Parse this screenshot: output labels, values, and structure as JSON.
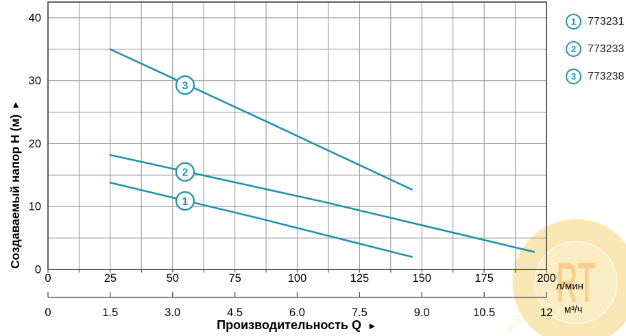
{
  "page": {
    "background": "#ffffff"
  },
  "legend": {
    "items": [
      {
        "marker": "1",
        "label": "773231"
      },
      {
        "marker": "2",
        "label": "773233"
      },
      {
        "marker": "3",
        "label": "773238"
      }
    ]
  },
  "watermark": {
    "arc_top": "WWW.RT.CO.UA",
    "logo": "RT",
    "arc_bottom": "Интернет магазин",
    "colors": {
      "disc": "#f3cf6e",
      "inner": "#f6db88",
      "ring_line": "#fdf2cd",
      "arc_text": "#fbeec2",
      "logo_text": "#efa11c"
    }
  },
  "chart_data": {
    "type": "line",
    "title": "",
    "grid": true,
    "legend_position": "top-right-outside",
    "y_axis": {
      "label": "Создаваемый напор H (м)",
      "arrow": "▲",
      "tick_labels": [
        "0",
        "10",
        "20",
        "30",
        "40"
      ],
      "tick_values": [
        0,
        10,
        20,
        30,
        40
      ],
      "grid_step": 5,
      "range": [
        0,
        42.5
      ]
    },
    "x_axis_primary": {
      "unit": "л/мин",
      "tick_labels": [
        "0",
        "25",
        "50",
        "75",
        "100",
        "125",
        "150",
        "175",
        "200"
      ],
      "tick_values": [
        0,
        25,
        50,
        75,
        100,
        125,
        150,
        175,
        200
      ],
      "grid_step": 12.5,
      "range": [
        0,
        200
      ]
    },
    "x_axis_secondary": {
      "unit": "м³/ч",
      "tick_labels": [
        "0",
        "1.5",
        "3.0",
        "4.5",
        "6.0",
        "7.5",
        "9.0",
        "10.5",
        "12"
      ],
      "tick_values": [
        0,
        1.5,
        3,
        4.5,
        6,
        7.5,
        9,
        10.5,
        12
      ]
    },
    "x_title": {
      "label": "Производительность Q",
      "arrow": "►"
    },
    "series": [
      {
        "marker": "1",
        "model": "773231",
        "points_lmin_m": [
          [
            25,
            13.8
          ],
          [
            85,
            8.1
          ],
          [
            146,
            2.0
          ]
        ],
        "label_at": [
          55,
          10.9
        ]
      },
      {
        "marker": "2",
        "model": "773233",
        "points_lmin_m": [
          [
            25,
            18.2
          ],
          [
            110,
            10.8
          ],
          [
            195,
            2.8
          ]
        ],
        "label_at": [
          55,
          15.5
        ]
      },
      {
        "marker": "3",
        "model": "773238",
        "points_lmin_m": [
          [
            25,
            35.0
          ],
          [
            85,
            24.0
          ],
          [
            146,
            12.7
          ]
        ],
        "label_at": [
          55,
          29.3
        ]
      }
    ],
    "colors": {
      "curve": "#2191ad",
      "grid": "#9b9b9b",
      "frame": "#4f4f4f",
      "text": "#000000"
    }
  }
}
